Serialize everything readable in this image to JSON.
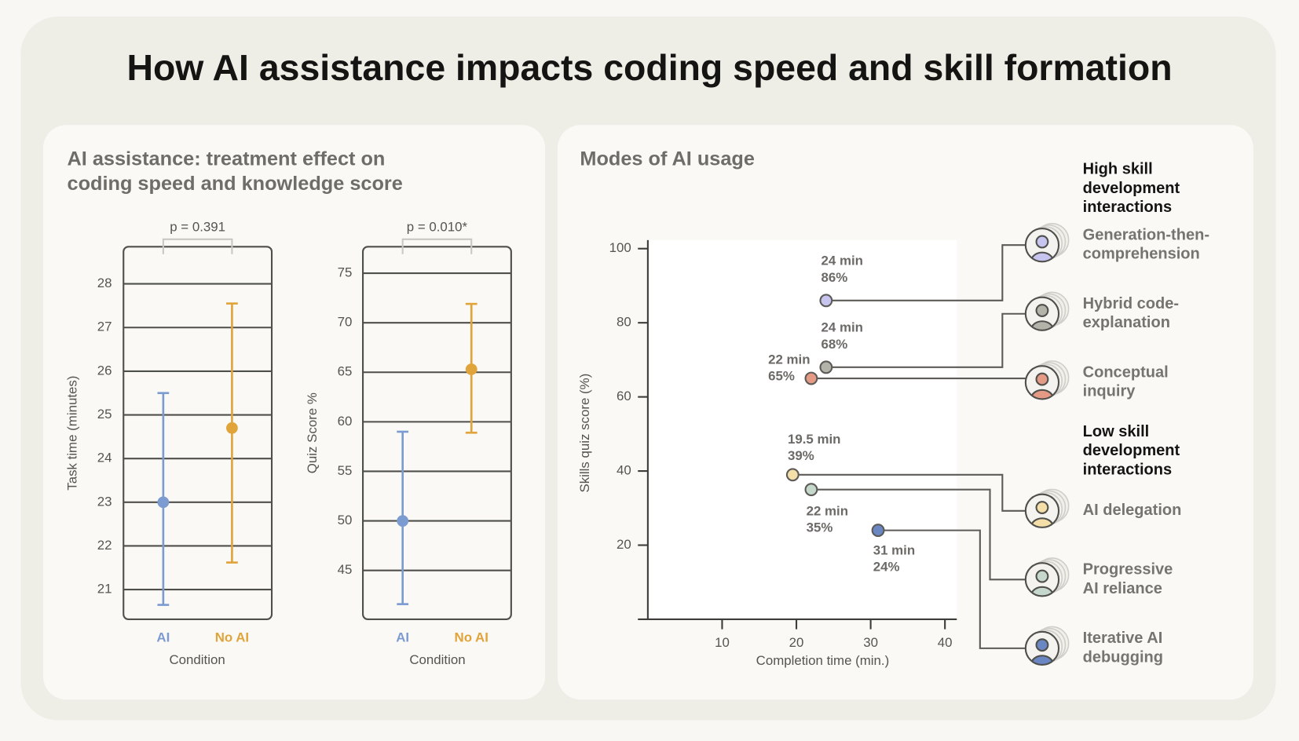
{
  "title": "How AI assistance impacts coding speed and skill formation",
  "panel_titles": [
    [
      "AI assistance: treatment effect on",
      "coding speed and knowledge score"
    ],
    [
      "Modes of AI usage"
    ]
  ],
  "chart_data": [
    {
      "type": "errorbar",
      "annotation": "p = 0.391",
      "categories": [
        "AI",
        "No AI"
      ],
      "colors": [
        "#7b9bd1",
        "#e0a43a"
      ],
      "values": [
        23,
        24.7
      ],
      "lower": [
        20.65,
        21.62
      ],
      "upper": [
        25.5,
        27.55
      ],
      "xlabel": "Condition",
      "ylabel": "Task time (minutes)",
      "ylim": [
        20.32,
        28.85
      ],
      "yticks": [
        21,
        22,
        23,
        24,
        25,
        26,
        27,
        28
      ],
      "grid": true
    },
    {
      "type": "errorbar",
      "annotation": "p = 0.010*",
      "categories": [
        "AI",
        "No AI"
      ],
      "colors": [
        "#7b9bd1",
        "#e0a43a"
      ],
      "values": [
        50,
        65.3
      ],
      "lower": [
        41.6,
        58.9
      ],
      "upper": [
        59,
        71.9
      ],
      "xlabel": "Condition",
      "ylabel": "Quiz Score %",
      "ylim": [
        40.07,
        77.67
      ],
      "yticks": [
        45,
        50,
        55,
        60,
        65,
        70,
        75
      ],
      "grid": true
    },
    {
      "type": "scatter",
      "xlabel": "Completion time (min.)",
      "ylabel": "Skills quiz score (%)",
      "xlim": [
        0,
        41.6
      ],
      "ylim": [
        0,
        102.3
      ],
      "xticks": [
        10,
        20,
        30,
        40
      ],
      "yticks": [
        20,
        40,
        60,
        80,
        100
      ],
      "groups": [
        {
          "title": [
            "High skill",
            "development",
            "interactions"
          ],
          "series": [
            {
              "name": [
                "Generation-then-",
                "comprehension"
              ],
              "color": "#c7c4ef",
              "x": 24,
              "y": 86,
              "x_label": "24 min",
              "y_label": "86%"
            },
            {
              "name": [
                "Hybrid code-",
                "explanation"
              ],
              "color": "#b4b3aa",
              "x": 24,
              "y": 68,
              "x_label": "24 min",
              "y_label": "68%"
            },
            {
              "name": [
                "Conceptual",
                "inquiry"
              ],
              "color": "#e59a86",
              "x": 22,
              "y": 65,
              "x_label": "22 min",
              "y_label": "65%"
            }
          ]
        },
        {
          "title": [
            "Low skill",
            "development",
            "interactions"
          ],
          "series": [
            {
              "name": [
                "AI delegation"
              ],
              "color": "#f4dfa8",
              "x": 19.5,
              "y": 39,
              "x_label": "19.5 min",
              "y_label": "39%"
            },
            {
              "name": [
                "Progressive",
                "AI reliance"
              ],
              "color": "#c6d8cc",
              "x": 22,
              "y": 35,
              "x_label": "22 min",
              "y_label": "35%"
            },
            {
              "name": [
                "Iterative AI",
                "debugging"
              ],
              "color": "#6a87c4",
              "x": 31,
              "y": 24,
              "x_label": "31 min",
              "y_label": "24%"
            }
          ]
        }
      ]
    }
  ]
}
